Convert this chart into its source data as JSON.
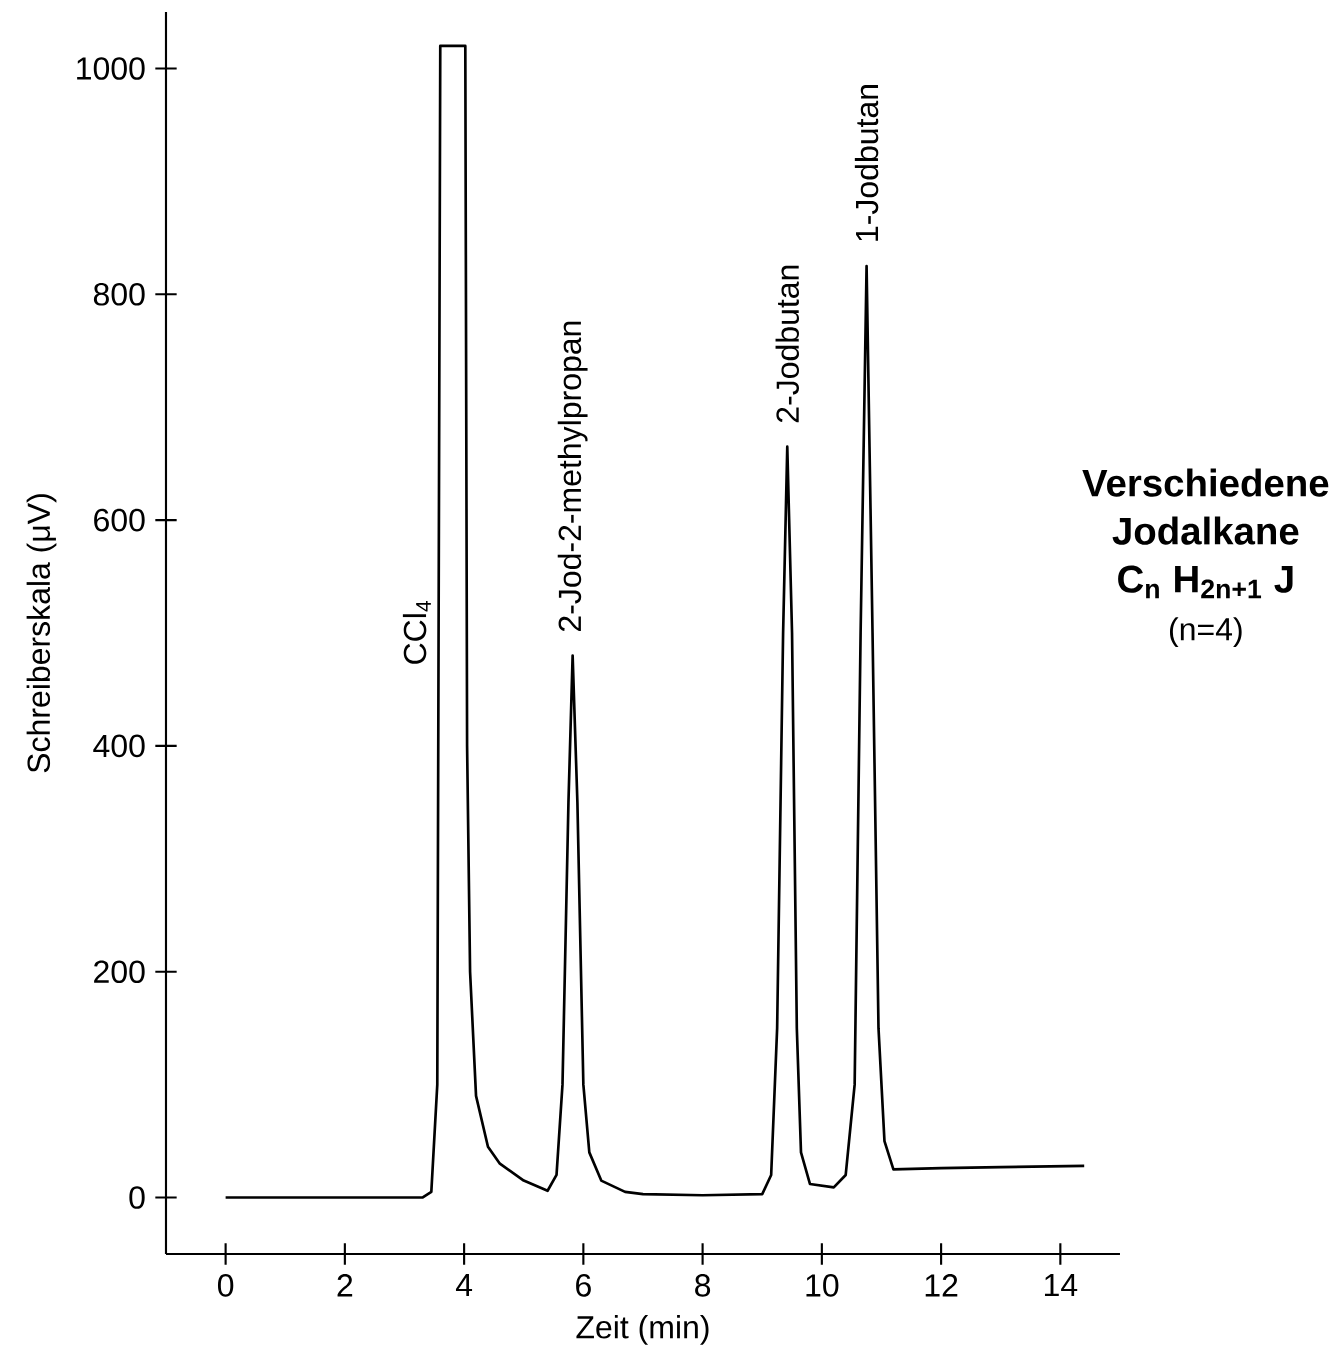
{
  "chart_data": {
    "type": "line",
    "xlabel": "Zeit (min)",
    "ylabel": "Schreiberskala (μV)",
    "xlim": [
      -1,
      15
    ],
    "ylim": [
      -50,
      1050
    ],
    "xticks": [
      0,
      2,
      4,
      6,
      8,
      10,
      12,
      14
    ],
    "yticks": [
      0,
      200,
      400,
      600,
      800,
      1000
    ],
    "marker": "none",
    "line_style": "solid",
    "series": [
      {
        "color": "#000000",
        "x": [
          0,
          2,
          3.3,
          3.45,
          3.55,
          3.6,
          4.02,
          4.05,
          4.1,
          4.2,
          4.4,
          4.6,
          5.0,
          5.4,
          5.55,
          5.65,
          5.75,
          5.82,
          5.9,
          6.0,
          6.1,
          6.3,
          6.7,
          7,
          8,
          9,
          9.15,
          9.25,
          9.35,
          9.42,
          9.5,
          9.58,
          9.65,
          9.8,
          10.2,
          10.4,
          10.55,
          10.65,
          10.75,
          10.85,
          10.95,
          11.05,
          11.2,
          12,
          13,
          14.4
        ],
        "values": [
          0,
          0,
          0,
          5,
          100,
          1020,
          1020,
          400,
          200,
          90,
          45,
          30,
          15,
          6,
          20,
          100,
          350,
          480,
          350,
          100,
          40,
          15,
          5,
          3,
          2,
          3,
          20,
          150,
          500,
          665,
          500,
          150,
          40,
          12,
          9,
          20,
          100,
          500,
          825,
          500,
          150,
          50,
          25,
          26,
          27,
          28
        ]
      }
    ],
    "annotations": [
      {
        "text": "CCl$_{4}$",
        "x": 3.6,
        "y": 470
      },
      {
        "text": "2-Jod-2-methylpropan",
        "x": 5.82,
        "y": 480
      },
      {
        "text": "2-Jodbutan",
        "x": 9.42,
        "y": 665
      },
      {
        "text": "1-Jodbutan",
        "x": 10.75,
        "y": 825
      },
      "Verschiedene",
      "Jodalkane",
      "C$_{n}$ H$_{2n+1}$ J",
      "(n=4)"
    ]
  }
}
